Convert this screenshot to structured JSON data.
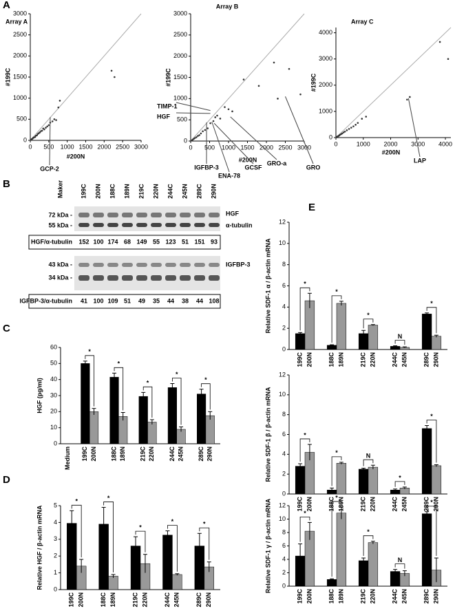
{
  "panel_labels": [
    "A",
    "B",
    "C",
    "D",
    "E"
  ],
  "blot": {
    "marker_header": "Maker",
    "lanes": [
      "199C",
      "200N",
      "188C",
      "189N",
      "219C",
      "220N",
      "244C",
      "245N",
      "289C",
      "290N"
    ],
    "hgf": {
      "markers": [
        "72 kDa -",
        "55 kDa -"
      ],
      "labels": [
        "HGF",
        "α-tubulin"
      ],
      "ratio_label": "HGF/α-tubulin",
      "ratios": [
        152,
        100,
        174,
        68,
        149,
        55,
        123,
        51,
        151,
        93
      ]
    },
    "igfbp": {
      "markers": [
        "43 kDa -",
        "34 kDa -"
      ],
      "label": "IGFBP-3",
      "ratio_label": "IGFBP-3/α-tubulin",
      "ratios": [
        41,
        100,
        109,
        51,
        49,
        35,
        44,
        38,
        44,
        108
      ]
    }
  },
  "chart_data": [
    {
      "type": "scatter",
      "title": "Array A",
      "x_label": "#200N",
      "y_label": "#199C",
      "color": "#333",
      "x": [
        20,
        40,
        60,
        80,
        100,
        130,
        150,
        180,
        200,
        230,
        260,
        290,
        320,
        350,
        380,
        420,
        460,
        500,
        540,
        600,
        650,
        700,
        760,
        800,
        2200,
        2280
      ],
      "y": [
        10,
        30,
        40,
        60,
        70,
        80,
        110,
        120,
        150,
        170,
        190,
        220,
        230,
        280,
        260,
        300,
        330,
        360,
        420,
        450,
        500,
        480,
        780,
        940,
        1650,
        1500
      ],
      "xlim": [
        0,
        3000
      ],
      "xticks": [
        0,
        500,
        1000,
        1500,
        2000,
        2500,
        3000
      ],
      "ylim": [
        0,
        3000
      ],
      "yticks": [
        0,
        500,
        1000,
        1500,
        2000,
        2500,
        3000
      ],
      "diagonal": {
        "x": [
          0,
          3000
        ],
        "y": [
          0,
          3000
        ]
      },
      "annotations": [
        {
          "text": "GCP-2",
          "x": 540,
          "y": 550
        }
      ]
    },
    {
      "type": "scatter",
      "title": "Array B",
      "x_label": "#200N",
      "y_label": "#199C",
      "color": "#333",
      "x": [
        20,
        50,
        80,
        110,
        150,
        190,
        230,
        270,
        320,
        380,
        450,
        520,
        600,
        650,
        700,
        780,
        900,
        1000,
        1100,
        1400,
        1800,
        2200,
        2300,
        2600,
        2900
      ],
      "y": [
        10,
        30,
        50,
        70,
        90,
        120,
        140,
        180,
        230,
        260,
        300,
        420,
        470,
        560,
        600,
        530,
        800,
        750,
        700,
        1450,
        1300,
        1850,
        1000,
        1700,
        1100
      ],
      "xlim": [
        0,
        3000
      ],
      "xticks": [
        0,
        500,
        1000,
        1500,
        2000,
        2500,
        3000
      ],
      "ylim": [
        0,
        3000
      ],
      "yticks": [
        0,
        500,
        1000,
        1500,
        2000,
        2500,
        3000
      ],
      "diagonal": {
        "x": [
          0,
          3000
        ],
        "y": [
          0,
          3000
        ]
      },
      "annotations": [
        {
          "text": "TIMP-1",
          "x": 520,
          "y": 720
        },
        {
          "text": "HGF",
          "x": 520,
          "y": 650
        },
        {
          "text": "IGFBP-3",
          "x": 420,
          "y": 440
        },
        {
          "text": "ENA-78",
          "x": 560,
          "y": 450
        },
        {
          "text": "GCSF",
          "x": 620,
          "y": 420
        },
        {
          "text": "GRO-a",
          "x": 1050,
          "y": 570
        },
        {
          "text": "GRO",
          "x": 2500,
          "y": 1050
        }
      ]
    },
    {
      "type": "scatter",
      "title": "Array C",
      "x_label": "#200N",
      "y_label": "#199C",
      "color": "#333",
      "x": [
        20,
        40,
        60,
        90,
        120,
        150,
        190,
        230,
        280,
        330,
        400,
        480,
        560,
        640,
        720,
        800,
        950,
        1100,
        2600,
        2700,
        3800,
        4100
      ],
      "y": [
        10,
        30,
        40,
        60,
        80,
        110,
        130,
        160,
        200,
        230,
        280,
        330,
        380,
        430,
        490,
        560,
        720,
        800,
        1450,
        1550,
        3650,
        3000
      ],
      "xlim": [
        0,
        4200
      ],
      "xticks": [
        0,
        1000,
        2000,
        3000,
        4000
      ],
      "ylim": [
        0,
        4200
      ],
      "yticks": [
        0,
        1000,
        2000,
        3000,
        4000
      ],
      "diagonal": {
        "x": [
          0,
          4200
        ],
        "y": [
          0,
          4200
        ]
      },
      "annotations": [
        {
          "text": "LAP",
          "x": 2650,
          "y": 1500
        }
      ]
    },
    {
      "type": "bar",
      "y_label": "HGF (pg/ml)",
      "categories": [
        "Medium",
        "199C",
        "200N",
        "188C",
        "189N",
        "219C",
        "220N",
        "244C",
        "245N",
        "289C",
        "290N"
      ],
      "values": [
        null,
        50,
        20,
        41.5,
        17,
        29.5,
        13.5,
        35,
        9,
        31,
        17.5
      ],
      "errors": [
        null,
        1.5,
        2,
        2.5,
        2.5,
        2.5,
        1.5,
        2.5,
        1.5,
        3,
        2.5
      ],
      "colors": [
        "#000",
        "#000",
        "#999",
        "#000",
        "#999",
        "#000",
        "#999",
        "#000",
        "#999",
        "#000",
        "#999"
      ],
      "ylim": [
        0,
        60
      ],
      "yticks": [
        0,
        10,
        20,
        30,
        40,
        50,
        60
      ],
      "significance": [
        "*",
        "*",
        "*",
        "*",
        "*"
      ]
    },
    {
      "type": "bar",
      "y_label": "Relative HGF / β-actin mRNA",
      "categories": [
        "199C",
        "200N",
        "188C",
        "189N",
        "219C",
        "220N",
        "244C",
        "245N",
        "289C",
        "290N"
      ],
      "values": [
        3.95,
        1.4,
        3.9,
        0.8,
        2.6,
        1.55,
        3.25,
        0.9,
        2.6,
        1.35
      ],
      "errors": [
        0.75,
        0.4,
        1,
        0.1,
        0.55,
        0.55,
        0.25,
        0.05,
        0.75,
        0.3
      ],
      "colors": [
        "#000",
        "#999",
        "#000",
        "#999",
        "#000",
        "#999",
        "#000",
        "#999",
        "#000",
        "#999"
      ],
      "ylim": [
        0,
        5
      ],
      "yticks": [
        0,
        1,
        2,
        3,
        4,
        5
      ],
      "significance": [
        "*",
        "*",
        "*",
        "*",
        "*"
      ]
    },
    {
      "type": "bar",
      "y_label": "Relative SDF-1 α / β-actin mRNA",
      "categories": [
        "199C",
        "200N",
        "188C",
        "189N",
        "219C",
        "220N",
        "244C",
        "245N",
        "289C",
        "290N"
      ],
      "values": [
        1.5,
        4.6,
        0.4,
        4.35,
        1.5,
        2.3,
        0.3,
        0.2,
        3.35,
        1.25
      ],
      "errors": [
        0.1,
        0.7,
        0.05,
        0.2,
        0.3,
        0.05,
        0.05,
        0.05,
        0.1,
        0.1
      ],
      "colors": [
        "#000",
        "#999",
        "#000",
        "#999",
        "#000",
        "#999",
        "#000",
        "#999",
        "#000",
        "#999"
      ],
      "ylim": [
        0,
        12
      ],
      "yticks": [
        0,
        2,
        4,
        6,
        8,
        10,
        12
      ],
      "significance": [
        "*",
        "*",
        "*",
        "N",
        "*"
      ]
    },
    {
      "type": "bar",
      "y_label": "Relative SDF-1 β / β-actin mRNA",
      "categories": [
        "199C",
        "200N",
        "188C",
        "189N",
        "219C",
        "220N",
        "244C",
        "245N",
        "289C",
        "290N"
      ],
      "values": [
        2.8,
        4.2,
        0.4,
        3.1,
        2.5,
        2.7,
        0.4,
        0.6,
        6.6,
        2.85
      ],
      "errors": [
        0.25,
        0.8,
        0.2,
        0.1,
        0.1,
        0.2,
        0.1,
        0.1,
        0.3,
        0.1
      ],
      "colors": [
        "#000",
        "#999",
        "#000",
        "#999",
        "#000",
        "#999",
        "#000",
        "#999",
        "#000",
        "#999"
      ],
      "ylim": [
        0,
        12
      ],
      "yticks": [
        0,
        2,
        4,
        6,
        8,
        10,
        12
      ],
      "significance": [
        "*",
        "*",
        "N",
        "*",
        "*"
      ]
    },
    {
      "type": "bar",
      "y_label": "Relative SDF-1 γ / β-actin mRNA",
      "categories": [
        "199C",
        "200N",
        "188C",
        "189N",
        "219C",
        "220N",
        "244C",
        "245N",
        "289C",
        "290N"
      ],
      "values": [
        4.5,
        8.2,
        1,
        10.9,
        3.8,
        6.5,
        2.2,
        1.9,
        10.8,
        2.4
      ],
      "errors": [
        1.8,
        1.3,
        0.1,
        0.9,
        0.4,
        0.2,
        0.3,
        0.4,
        0.3,
        1.8
      ],
      "colors": [
        "#000",
        "#999",
        "#000",
        "#999",
        "#000",
        "#999",
        "#000",
        "#999",
        "#000",
        "#999"
      ],
      "ylim": [
        0,
        12
      ],
      "yticks": [
        0,
        2,
        4,
        6,
        8,
        10,
        12
      ],
      "significance": [
        "*",
        "*",
        "*",
        "N",
        "*"
      ]
    }
  ]
}
